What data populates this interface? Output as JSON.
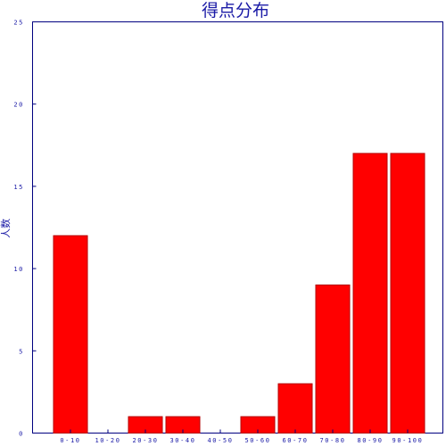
{
  "chart_data": {
    "type": "bar",
    "title": "得点分布",
    "xlabel": "",
    "ylabel": "人数",
    "categories": [
      "0-10",
      "10-20",
      "20-30",
      "30-40",
      "40-50",
      "50-60",
      "60-70",
      "70-80",
      "80-90",
      "90-100"
    ],
    "values": [
      12,
      0,
      1,
      1,
      0,
      1,
      3,
      9,
      17,
      17
    ],
    "ylim": [
      0,
      25
    ],
    "yticks": [
      "0",
      "5",
      "10",
      "15",
      "20",
      "25"
    ],
    "grid": false,
    "legend": "none",
    "colors": {
      "bar_fill": "#ff0000",
      "bar_edge": "#b40000",
      "axis": "#000080",
      "text": "#1a1aa6",
      "background": "#ffffff"
    }
  }
}
